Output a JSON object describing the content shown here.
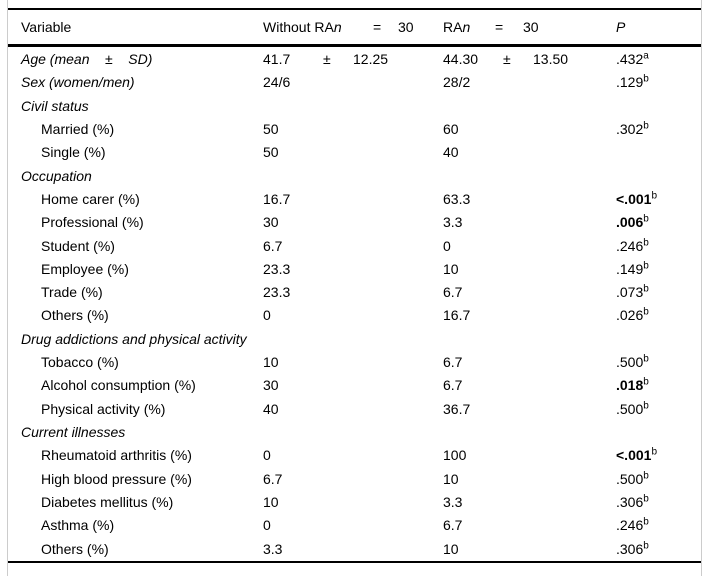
{
  "colors": {
    "text": "#000000",
    "rule": "#000000",
    "frame_border": "#cccccc",
    "background": "#ffffff"
  },
  "table": {
    "header": {
      "variable": "Variable",
      "group1": {
        "pre": "Without RA",
        "n": "n",
        "eq": "=",
        "count": "30"
      },
      "group2": {
        "pre": "RA",
        "n": "n",
        "eq": "=",
        "count": "30"
      },
      "p": "P"
    },
    "rows": [
      {
        "style": "italic",
        "label": "Age (mean    ±    SD)",
        "c2": {
          "v1": "41.7",
          "pm": "±",
          "v2": "12.25"
        },
        "c3": {
          "v1": "44.30",
          "pm": "±",
          "v2": "13.50"
        },
        "p": {
          "val": ".432",
          "sup": "a",
          "bold": false
        }
      },
      {
        "style": "italic",
        "label": "Sex (women/men)",
        "c2": "24/6",
        "c3": "28/2",
        "p": {
          "val": ".129",
          "sup": "b",
          "bold": false
        }
      },
      {
        "style": "section",
        "label": "Civil status",
        "c2": "",
        "c3": "",
        "p": null
      },
      {
        "style": "item",
        "label": "Married (%)",
        "c2": "50",
        "c3": "60",
        "p": {
          "val": ".302",
          "sup": "b",
          "bold": false
        }
      },
      {
        "style": "item",
        "label": "Single (%)",
        "c2": "50",
        "c3": "40",
        "p": null
      },
      {
        "style": "section",
        "label": "Occupation",
        "c2": "",
        "c3": "",
        "p": null
      },
      {
        "style": "item",
        "label": "Home carer (%)",
        "c2": "16.7",
        "c3": "63.3",
        "p": {
          "val": "<.001",
          "sup": "b",
          "bold": true
        }
      },
      {
        "style": "item",
        "label": "Professional (%)",
        "c2": "30",
        "c3": "3.3",
        "p": {
          "val": ".006",
          "sup": "b",
          "bold": true
        }
      },
      {
        "style": "item",
        "label": "Student (%)",
        "c2": "6.7",
        "c3": "0",
        "p": {
          "val": ".246",
          "sup": "b",
          "bold": false
        }
      },
      {
        "style": "item",
        "label": "Employee (%)",
        "c2": "23.3",
        "c3": "10",
        "p": {
          "val": ".149",
          "sup": "b",
          "bold": false
        }
      },
      {
        "style": "item",
        "label": "Trade (%)",
        "c2": "23.3",
        "c3": "6.7",
        "p": {
          "val": ".073",
          "sup": "b",
          "bold": false
        }
      },
      {
        "style": "item",
        "label": "Others (%)",
        "c2": "0",
        "c3": "16.7",
        "p": {
          "val": ".026",
          "sup": "b",
          "bold": false
        }
      },
      {
        "style": "section",
        "label": "Drug addictions and physical activity",
        "c2": "",
        "c3": "",
        "p": null
      },
      {
        "style": "item",
        "label": "Tobacco (%)",
        "c2": "10",
        "c3": "6.7",
        "p": {
          "val": ".500",
          "sup": "b",
          "bold": false
        }
      },
      {
        "style": "item",
        "label": "Alcohol consumption (%)",
        "c2": "30",
        "c3": "6.7",
        "p": {
          "val": ".018",
          "sup": "b",
          "bold": true
        }
      },
      {
        "style": "item",
        "label": "Physical activity (%)",
        "c2": "40",
        "c3": "36.7",
        "p": {
          "val": ".500",
          "sup": "b",
          "bold": false
        }
      },
      {
        "style": "section",
        "label": "Current illnesses",
        "c2": "",
        "c3": "",
        "p": null
      },
      {
        "style": "item",
        "label": "Rheumatoid arthritis (%)",
        "c2": "0",
        "c3": "100",
        "p": {
          "val": "<.001",
          "sup": "b",
          "bold": true
        }
      },
      {
        "style": "item",
        "label": "High blood pressure (%)",
        "c2": "6.7",
        "c3": "10",
        "p": {
          "val": ".500",
          "sup": "b",
          "bold": false
        }
      },
      {
        "style": "item",
        "label": "Diabetes mellitus (%)",
        "c2": "10",
        "c3": "3.3",
        "p": {
          "val": ".306",
          "sup": "b",
          "bold": false
        }
      },
      {
        "style": "item",
        "label": "Asthma (%)",
        "c2": "0",
        "c3": "6.7",
        "p": {
          "val": ".246",
          "sup": "b",
          "bold": false
        }
      },
      {
        "style": "item",
        "label": "Others (%)",
        "c2": "3.3",
        "c3": "10",
        "p": {
          "val": ".306",
          "sup": "b",
          "bold": false
        }
      }
    ]
  }
}
